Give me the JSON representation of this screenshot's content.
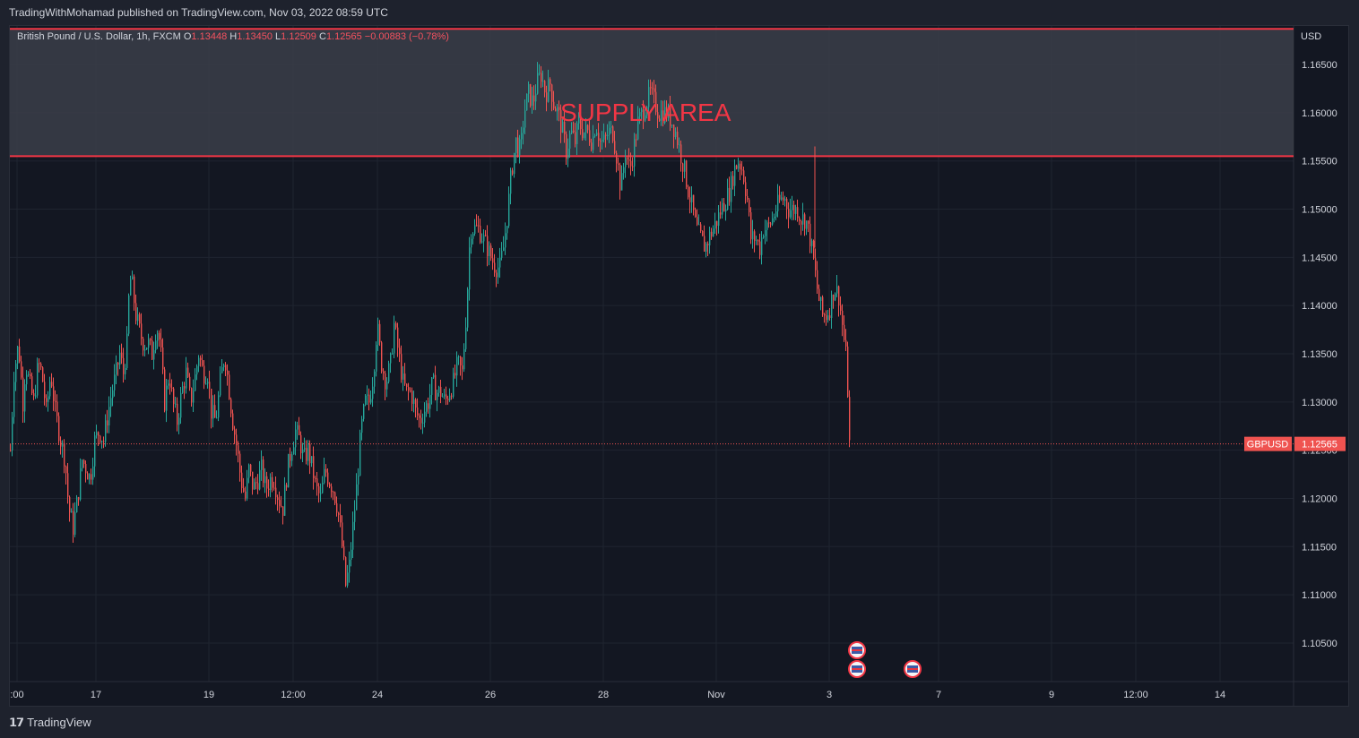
{
  "header": {
    "publisher_line": "TradingWithMohamad published on TradingView.com, Nov 03, 2022 08:59 UTC"
  },
  "legend": {
    "symbol": "British Pound / U.S. Dollar, 1h, FXCM",
    "o_label": "O",
    "o_value": "1.13448",
    "h_label": "H",
    "h_value": "1.13450",
    "l_label": "L",
    "l_value": "1.12509",
    "c_label": "C",
    "c_value": "1.12565",
    "change": "−0.00883 (−0.78%)"
  },
  "axis": {
    "currency": "USD",
    "price_ticks": [
      "1.16500",
      "1.16000",
      "1.15500",
      "1.15000",
      "1.14500",
      "1.14000",
      "1.13500",
      "1.13000",
      "1.12500",
      "1.12000",
      "1.11500",
      "1.11000",
      "1.10500"
    ],
    "time_ticks": [
      ":00",
      "17",
      "19",
      "12:00",
      "24",
      "26",
      "28",
      "Nov",
      "3",
      "7",
      "9",
      "12:00",
      "14"
    ]
  },
  "annotation": {
    "supply_text": "SUPPLY AREA",
    "zone_top": 1.1687,
    "zone_bottom": 1.1555
  },
  "price_tag": {
    "symbol": "GBPUSD",
    "value": "1.12565"
  },
  "colors": {
    "up": "#26a69a",
    "down": "#ef5350",
    "zone_border": "#f23645",
    "zone_fill": "#3b3e49",
    "text": "#d1d4dc"
  },
  "chart_data": {
    "type": "candlestick",
    "series": [
      {
        "name": "GBPUSD",
        "anchors": [
          [
            0,
            1.125
          ],
          [
            4,
            1.133
          ],
          [
            9,
            1.136
          ],
          [
            14,
            1.13
          ],
          [
            17,
            1.134
          ],
          [
            21,
            1.132
          ],
          [
            26,
            1.13
          ],
          [
            31,
            1.134
          ],
          [
            35,
            1.133
          ],
          [
            40,
            1.129
          ],
          [
            45,
            1.133
          ],
          [
            50,
            1.129
          ],
          [
            56,
            1.126
          ],
          [
            61,
            1.124
          ],
          [
            65,
            1.119
          ],
          [
            70,
            1.117
          ],
          [
            75,
            1.12
          ],
          [
            80,
            1.124
          ],
          [
            85,
            1.123
          ],
          [
            89,
            1.122
          ],
          [
            94,
            1.126
          ],
          [
            99,
            1.127
          ],
          [
            104,
            1.126
          ],
          [
            109,
            1.129
          ],
          [
            113,
            1.131
          ],
          [
            118,
            1.133
          ],
          [
            122,
            1.135
          ],
          [
            126,
            1.133
          ],
          [
            130,
            1.136
          ],
          [
            133,
            1.143
          ],
          [
            136,
            1.142
          ],
          [
            140,
            1.139
          ],
          [
            145,
            1.137
          ],
          [
            149,
            1.136
          ],
          [
            154,
            1.136
          ],
          [
            158,
            1.135
          ],
          [
            163,
            1.138
          ],
          [
            167,
            1.136
          ],
          [
            172,
            1.13
          ],
          [
            177,
            1.133
          ],
          [
            181,
            1.13
          ],
          [
            186,
            1.128
          ],
          [
            191,
            1.131
          ],
          [
            196,
            1.133
          ],
          [
            201,
            1.13
          ],
          [
            205,
            1.132
          ],
          [
            210,
            1.135
          ],
          [
            215,
            1.133
          ],
          [
            220,
            1.133
          ],
          [
            224,
            1.129
          ],
          [
            229,
            1.128
          ],
          [
            234,
            1.132
          ],
          [
            239,
            1.135
          ],
          [
            243,
            1.132
          ],
          [
            248,
            1.128
          ],
          [
            253,
            1.125
          ],
          [
            257,
            1.122
          ],
          [
            262,
            1.12
          ],
          [
            266,
            1.123
          ],
          [
            271,
            1.121
          ],
          [
            276,
            1.122
          ],
          [
            280,
            1.123
          ],
          [
            285,
            1.121
          ],
          [
            290,
            1.122
          ],
          [
            294,
            1.122
          ],
          [
            299,
            1.12
          ],
          [
            304,
            1.119
          ],
          [
            309,
            1.123
          ],
          [
            313,
            1.125
          ],
          [
            318,
            1.127
          ],
          [
            323,
            1.126
          ],
          [
            327,
            1.124
          ],
          [
            332,
            1.125
          ],
          [
            337,
            1.123
          ],
          [
            341,
            1.121
          ],
          [
            346,
            1.12
          ],
          [
            351,
            1.123
          ],
          [
            355,
            1.122
          ],
          [
            360,
            1.121
          ],
          [
            365,
            1.119
          ],
          [
            369,
            1.116
          ],
          [
            374,
            1.111
          ],
          [
            378,
            1.113
          ],
          [
            383,
            1.118
          ],
          [
            387,
            1.122
          ],
          [
            391,
            1.127
          ],
          [
            396,
            1.13
          ],
          [
            400,
            1.13
          ],
          [
            405,
            1.133
          ],
          [
            409,
            1.138
          ],
          [
            414,
            1.134
          ],
          [
            419,
            1.132
          ],
          [
            424,
            1.134
          ],
          [
            428,
            1.138
          ],
          [
            433,
            1.135
          ],
          [
            438,
            1.132
          ],
          [
            442,
            1.131
          ],
          [
            447,
            1.131
          ],
          [
            452,
            1.129
          ],
          [
            457,
            1.128
          ],
          [
            461,
            1.129
          ],
          [
            466,
            1.13
          ],
          [
            471,
            1.132
          ],
          [
            475,
            1.131
          ],
          [
            480,
            1.131
          ],
          [
            485,
            1.13
          ],
          [
            489,
            1.131
          ],
          [
            494,
            1.132
          ],
          [
            499,
            1.134
          ],
          [
            504,
            1.133
          ],
          [
            509,
            1.14
          ],
          [
            513,
            1.148
          ],
          [
            518,
            1.148
          ],
          [
            522,
            1.148
          ],
          [
            527,
            1.147
          ],
          [
            532,
            1.146
          ],
          [
            536,
            1.145
          ],
          [
            541,
            1.144
          ],
          [
            546,
            1.144
          ],
          [
            550,
            1.146
          ],
          [
            555,
            1.15
          ],
          [
            559,
            1.154
          ],
          [
            564,
            1.157
          ],
          [
            569,
            1.156
          ],
          [
            573,
            1.16
          ],
          [
            578,
            1.162
          ],
          [
            583,
            1.161
          ],
          [
            587,
            1.163
          ],
          [
            592,
            1.164
          ],
          [
            597,
            1.162
          ],
          [
            602,
            1.163
          ],
          [
            606,
            1.161
          ],
          [
            611,
            1.16
          ],
          [
            616,
            1.158
          ],
          [
            620,
            1.156
          ],
          [
            625,
            1.158
          ],
          [
            630,
            1.157
          ],
          [
            634,
            1.159
          ],
          [
            639,
            1.158
          ],
          [
            644,
            1.158
          ],
          [
            649,
            1.157
          ],
          [
            653,
            1.159
          ],
          [
            658,
            1.157
          ],
          [
            663,
            1.157
          ],
          [
            667,
            1.158
          ],
          [
            672,
            1.158
          ],
          [
            677,
            1.155
          ],
          [
            681,
            1.152
          ],
          [
            686,
            1.156
          ],
          [
            691,
            1.154
          ],
          [
            695,
            1.156
          ],
          [
            700,
            1.159
          ],
          [
            705,
            1.16
          ],
          [
            709,
            1.161
          ],
          [
            714,
            1.162
          ],
          [
            719,
            1.161
          ],
          [
            723,
            1.16
          ],
          [
            728,
            1.16
          ],
          [
            733,
            1.16
          ],
          [
            738,
            1.159
          ],
          [
            742,
            1.158
          ],
          [
            747,
            1.156
          ],
          [
            752,
            1.154
          ],
          [
            756,
            1.152
          ],
          [
            761,
            1.15
          ],
          [
            765,
            1.148
          ],
          [
            770,
            1.147
          ],
          [
            775,
            1.146
          ],
          [
            779,
            1.147
          ],
          [
            784,
            1.148
          ],
          [
            789,
            1.149
          ],
          [
            793,
            1.15
          ],
          [
            798,
            1.151
          ],
          [
            803,
            1.152
          ],
          [
            807,
            1.154
          ],
          [
            812,
            1.155
          ],
          [
            817,
            1.154
          ],
          [
            822,
            1.151
          ],
          [
            826,
            1.147
          ],
          [
            831,
            1.147
          ],
          [
            836,
            1.146
          ],
          [
            840,
            1.148
          ],
          [
            845,
            1.148
          ],
          [
            850,
            1.149
          ],
          [
            854,
            1.15
          ],
          [
            859,
            1.151
          ],
          [
            864,
            1.151
          ],
          [
            868,
            1.15
          ],
          [
            873,
            1.15
          ],
          [
            878,
            1.15
          ],
          [
            882,
            1.149
          ],
          [
            887,
            1.149
          ],
          [
            892,
            1.147
          ],
          [
            897,
            1.144
          ],
          [
            901,
            1.141
          ],
          [
            906,
            1.139
          ],
          [
            910,
            1.139
          ],
          [
            915,
            1.14
          ],
          [
            919,
            1.142
          ],
          [
            924,
            1.141
          ],
          [
            928,
            1.138
          ],
          [
            933,
            1.134
          ],
          [
            936,
            1.1256
          ]
        ]
      }
    ],
    "ylim": [
      1.101,
      1.169
    ],
    "y_axis_ticks": [
      "1.16500",
      "1.16000",
      "1.15500",
      "1.15000",
      "1.14500",
      "1.14000",
      "1.13500",
      "1.13000",
      "1.12500",
      "1.12000",
      "1.11500",
      "1.11000",
      "1.10500"
    ],
    "x_axis_ticks": [
      ":00",
      "17",
      "19",
      "12:00",
      "24",
      "26",
      "28",
      "Nov",
      "3",
      "7",
      "9",
      "12:00",
      "14"
    ],
    "last_price": 1.12565,
    "grid": true
  }
}
